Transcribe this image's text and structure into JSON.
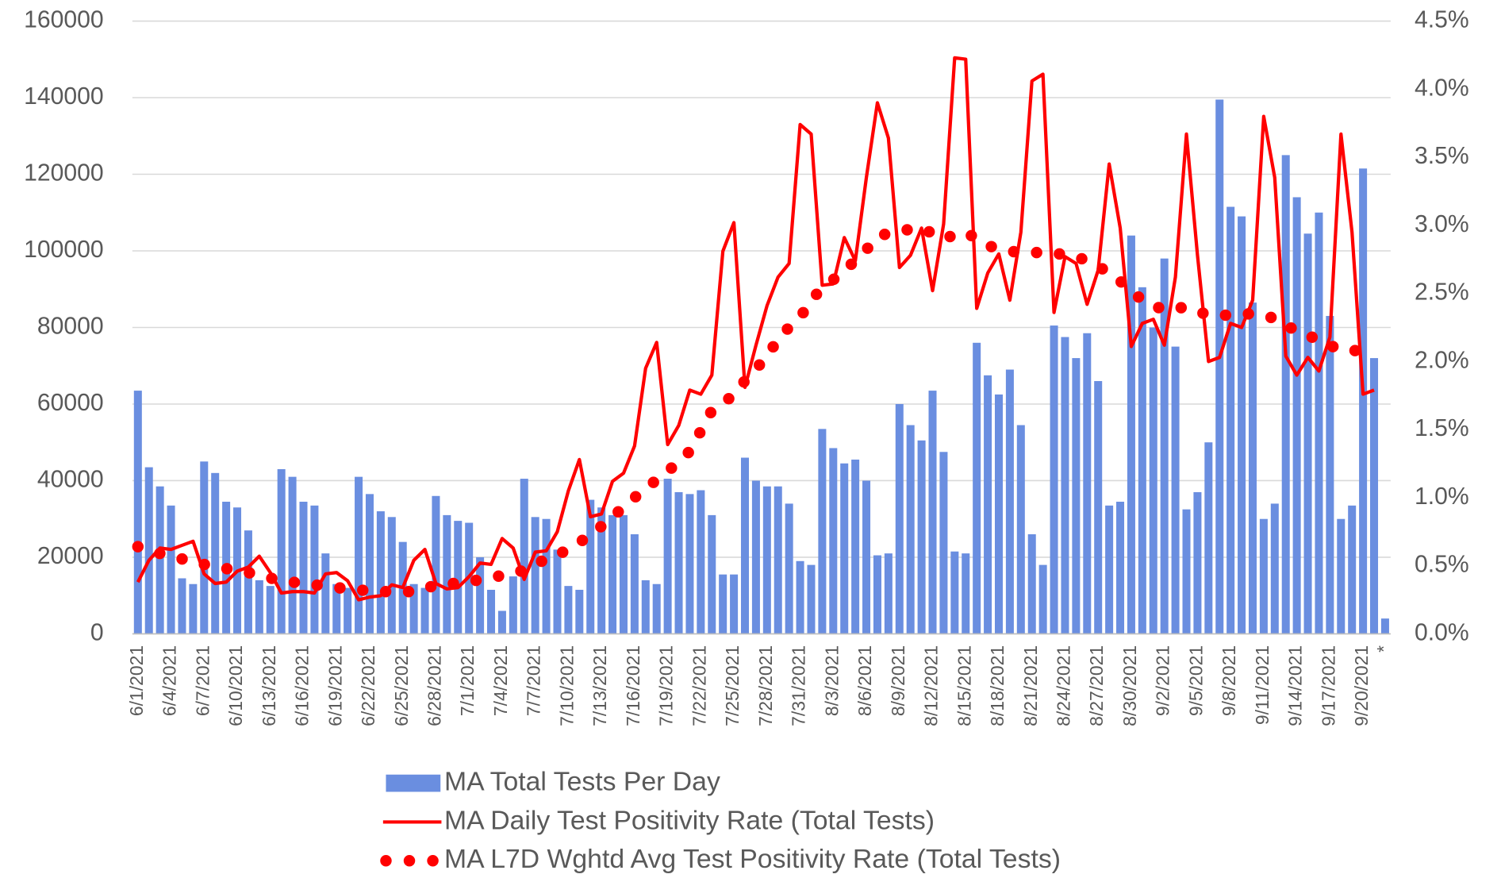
{
  "chart_data": {
    "type": "combo",
    "categories": [
      "6/1/2021",
      null,
      null,
      "6/4/2021",
      null,
      null,
      "6/7/2021",
      null,
      null,
      "6/10/2021",
      null,
      null,
      "6/13/2021",
      null,
      null,
      "6/16/2021",
      null,
      null,
      "6/19/2021",
      null,
      null,
      "6/22/2021",
      null,
      null,
      "6/25/2021",
      null,
      null,
      "6/28/2021",
      null,
      null,
      "7/1/2021",
      null,
      null,
      "7/4/2021",
      null,
      null,
      "7/7/2021",
      null,
      null,
      "7/10/2021",
      null,
      null,
      "7/13/2021",
      null,
      null,
      "7/16/2021",
      null,
      null,
      "7/19/2021",
      null,
      null,
      "7/22/2021",
      null,
      null,
      "7/25/2021",
      null,
      null,
      "7/28/2021",
      null,
      null,
      "7/31/2021",
      null,
      null,
      "8/3/2021",
      null,
      null,
      "8/6/2021",
      null,
      null,
      "8/9/2021",
      null,
      null,
      "8/12/2021",
      null,
      null,
      "8/15/2021",
      null,
      null,
      "8/18/2021",
      null,
      null,
      "8/21/2021",
      null,
      null,
      "8/24/2021",
      null,
      null,
      "8/27/2021",
      null,
      null,
      "8/30/2021",
      null,
      null,
      "9/2/2021",
      null,
      null,
      "9/5/2021",
      null,
      null,
      "9/8/2021",
      null,
      null,
      "9/11/2021",
      null,
      null,
      "9/14/2021",
      null,
      null,
      "9/17/2021",
      null,
      null,
      "9/20/2021",
      null,
      "*"
    ],
    "series": [
      {
        "name": "MA Total Tests Per Day",
        "type": "bar",
        "color": "#6a8ee0",
        "axis": "y",
        "values": [
          63500,
          43500,
          38500,
          33500,
          14500,
          13000,
          45000,
          42000,
          34500,
          33000,
          27000,
          14000,
          12500,
          43000,
          41000,
          34500,
          33500,
          21000,
          13000,
          12000,
          41000,
          36500,
          32000,
          30500,
          24000,
          13000,
          12000,
          36000,
          31000,
          29500,
          29000,
          20000,
          11500,
          6000,
          15000,
          40500,
          30500,
          30000,
          22000,
          12500,
          11500,
          35000,
          33000,
          31000,
          31000,
          26000,
          14000,
          13000,
          40500,
          37000,
          36500,
          37500,
          31000,
          15500,
          15500,
          46000,
          40000,
          38500,
          38500,
          34000,
          19000,
          18000,
          53500,
          48500,
          44500,
          45500,
          40000,
          20500,
          21000,
          60000,
          54500,
          50500,
          63500,
          47500,
          21500,
          21000,
          76000,
          67500,
          62500,
          69000,
          54500,
          26000,
          18000,
          80500,
          77500,
          72000,
          78500,
          66000,
          33500,
          34500,
          104000,
          90500,
          80000,
          98000,
          75000,
          32500,
          37000,
          50000,
          139500,
          111500,
          109000,
          86500,
          30000,
          34000,
          125000,
          114000,
          104500,
          110000,
          83000,
          30000,
          33500,
          121500,
          72000,
          4000
        ]
      },
      {
        "name": "MA Daily Test Positivity Rate (Total Tests)",
        "type": "line",
        "line_style": "solid",
        "color": "#ff0000",
        "axis": "y2",
        "values": [
          0.38,
          0.54,
          0.63,
          0.62,
          0.65,
          0.68,
          0.44,
          0.37,
          0.38,
          0.46,
          0.49,
          0.57,
          0.45,
          0.3,
          0.31,
          0.31,
          0.3,
          0.44,
          0.45,
          0.39,
          0.25,
          0.27,
          0.28,
          0.36,
          0.34,
          0.54,
          0.62,
          0.37,
          0.33,
          0.34,
          0.42,
          0.52,
          0.51,
          0.7,
          0.63,
          0.4,
          0.6,
          0.61,
          0.75,
          1.05,
          1.28,
          0.86,
          0.88,
          1.12,
          1.18,
          1.38,
          1.95,
          2.14,
          1.39,
          1.53,
          1.79,
          1.76,
          1.9,
          2.81,
          3.02,
          1.81,
          2.12,
          2.41,
          2.62,
          2.72,
          3.74,
          3.67,
          2.56,
          2.57,
          2.91,
          2.74,
          3.35,
          3.9,
          3.64,
          2.69,
          2.78,
          2.98,
          2.52,
          3.01,
          4.23,
          4.22,
          2.39,
          2.65,
          2.79,
          2.45,
          2.95,
          4.06,
          4.11,
          2.36,
          2.77,
          2.72,
          2.42,
          2.67,
          3.45,
          2.98,
          2.11,
          2.28,
          2.31,
          2.12,
          2.62,
          3.67,
          2.78,
          2.0,
          2.03,
          2.28,
          2.25,
          2.45,
          3.8,
          3.35,
          2.04,
          1.9,
          2.03,
          1.93,
          2.18,
          3.67,
          2.95,
          1.76,
          1.79,
          null
        ]
      },
      {
        "name": "MA L7D Wghtd Avg Test Positivity Rate (Total Tests)",
        "type": "line",
        "line_style": "dotted",
        "color": "#ff0000",
        "axis": "y2",
        "values": [
          0.64,
          0.61,
          0.59,
          0.57,
          0.55,
          0.53,
          0.51,
          0.49,
          0.48,
          0.46,
          0.45,
          0.43,
          0.41,
          0.39,
          0.38,
          0.37,
          0.36,
          0.35,
          0.34,
          0.33,
          0.32,
          0.32,
          0.31,
          0.31,
          0.31,
          0.31,
          0.33,
          0.36,
          0.37,
          0.37,
          0.38,
          0.4,
          0.41,
          0.43,
          0.44,
          0.47,
          0.51,
          0.55,
          0.58,
          0.62,
          0.67,
          0.73,
          0.79,
          0.86,
          0.93,
          1.0,
          1.07,
          1.13,
          1.19,
          1.27,
          1.34,
          1.49,
          1.64,
          1.7,
          1.75,
          1.86,
          1.95,
          2.03,
          2.17,
          2.25,
          2.32,
          2.46,
          2.53,
          2.6,
          2.67,
          2.74,
          2.82,
          2.92,
          2.94,
          2.96,
          2.97,
          2.98,
          2.94,
          2.9,
          2.93,
          2.95,
          2.9,
          2.85,
          2.83,
          2.81,
          2.8,
          2.8,
          2.8,
          2.8,
          2.78,
          2.77,
          2.74,
          2.7,
          2.65,
          2.59,
          2.52,
          2.45,
          2.41,
          2.38,
          2.39,
          2.4,
          2.37,
          2.34,
          2.34,
          2.34,
          2.35,
          2.35,
          2.33,
          2.32,
          2.27,
          2.22,
          2.19,
          2.16,
          2.12,
          2.08,
          2.08,
          2.08,
          null,
          null
        ]
      }
    ],
    "ylim": [
      0,
      160000
    ],
    "yticks": [
      0,
      20000,
      40000,
      60000,
      80000,
      100000,
      120000,
      140000,
      160000
    ],
    "y2lim": [
      0,
      4.5
    ],
    "y2ticks": [
      {
        "value": 0,
        "label": "0.0%"
      },
      {
        "value": 0.5,
        "label": "0.5%"
      },
      {
        "value": 1,
        "label": "1.0%"
      },
      {
        "value": 1.5,
        "label": "1.5%"
      },
      {
        "value": 2,
        "label": "2.0%"
      },
      {
        "value": 2.5,
        "label": "2.5%"
      },
      {
        "value": 3,
        "label": "3.0%"
      },
      {
        "value": 3.5,
        "label": "3.5%"
      },
      {
        "value": 4,
        "label": "4.0%"
      },
      {
        "value": 4.5,
        "label": "4.5%"
      }
    ],
    "grid": true,
    "legend": "bottom"
  }
}
